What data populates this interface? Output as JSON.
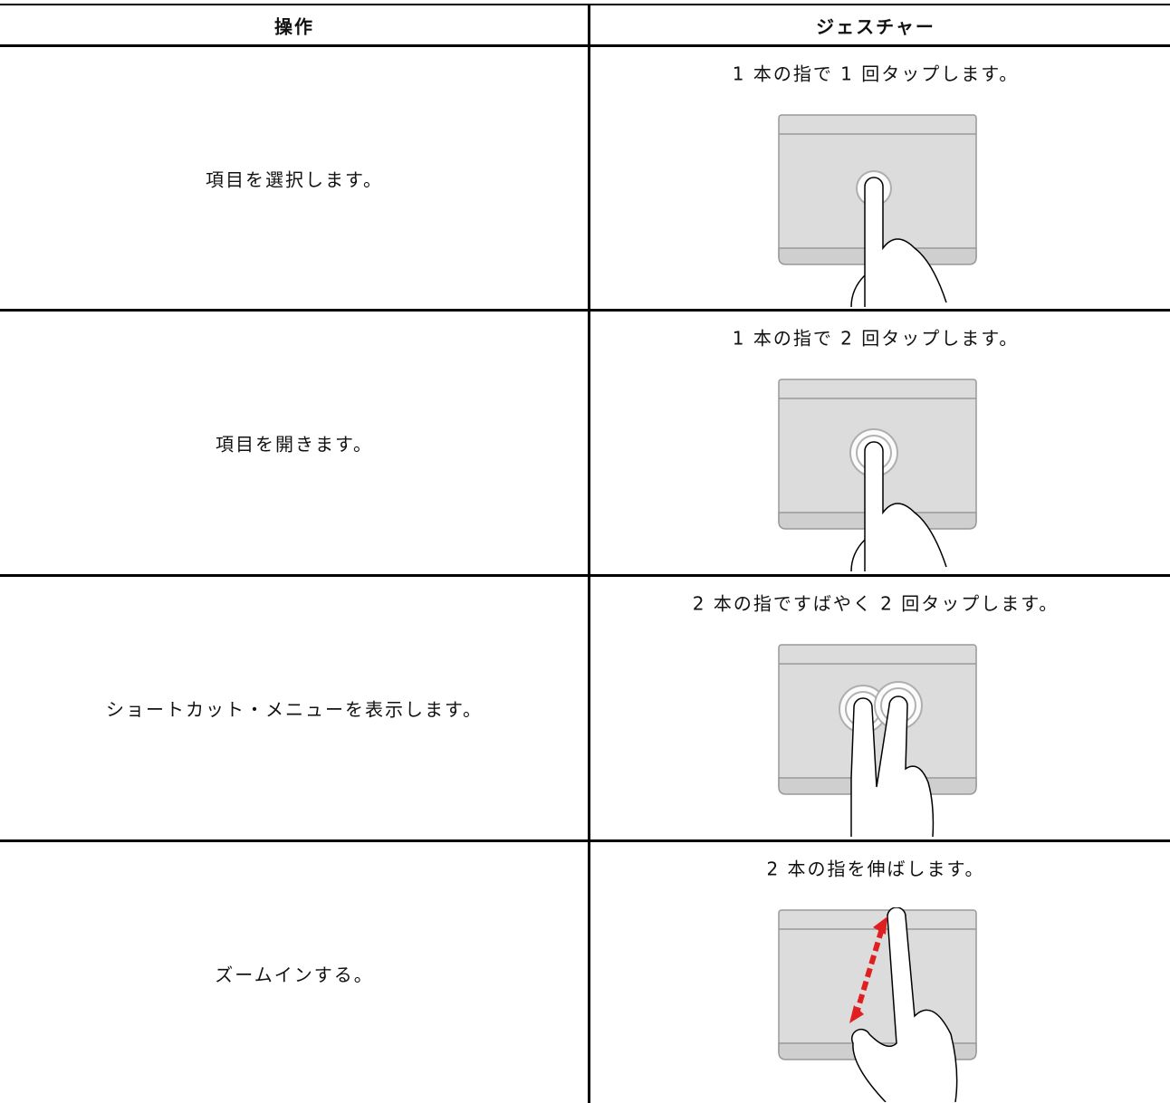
{
  "table": {
    "header": [
      "操作",
      "ジェスチャー"
    ],
    "rows": [
      [
        "項目を選択します。",
        "1 本の指で 1 回タップします。"
      ],
      [
        "項目を開きます。",
        "1 本の指で 2 回タップします。"
      ],
      [
        "ショートカット・メニューを表示します。",
        "2 本の指ですばやく 2 回タップします。"
      ],
      [
        "ズームインする。",
        "2 本の指を伸ばします。"
      ]
    ]
  }
}
